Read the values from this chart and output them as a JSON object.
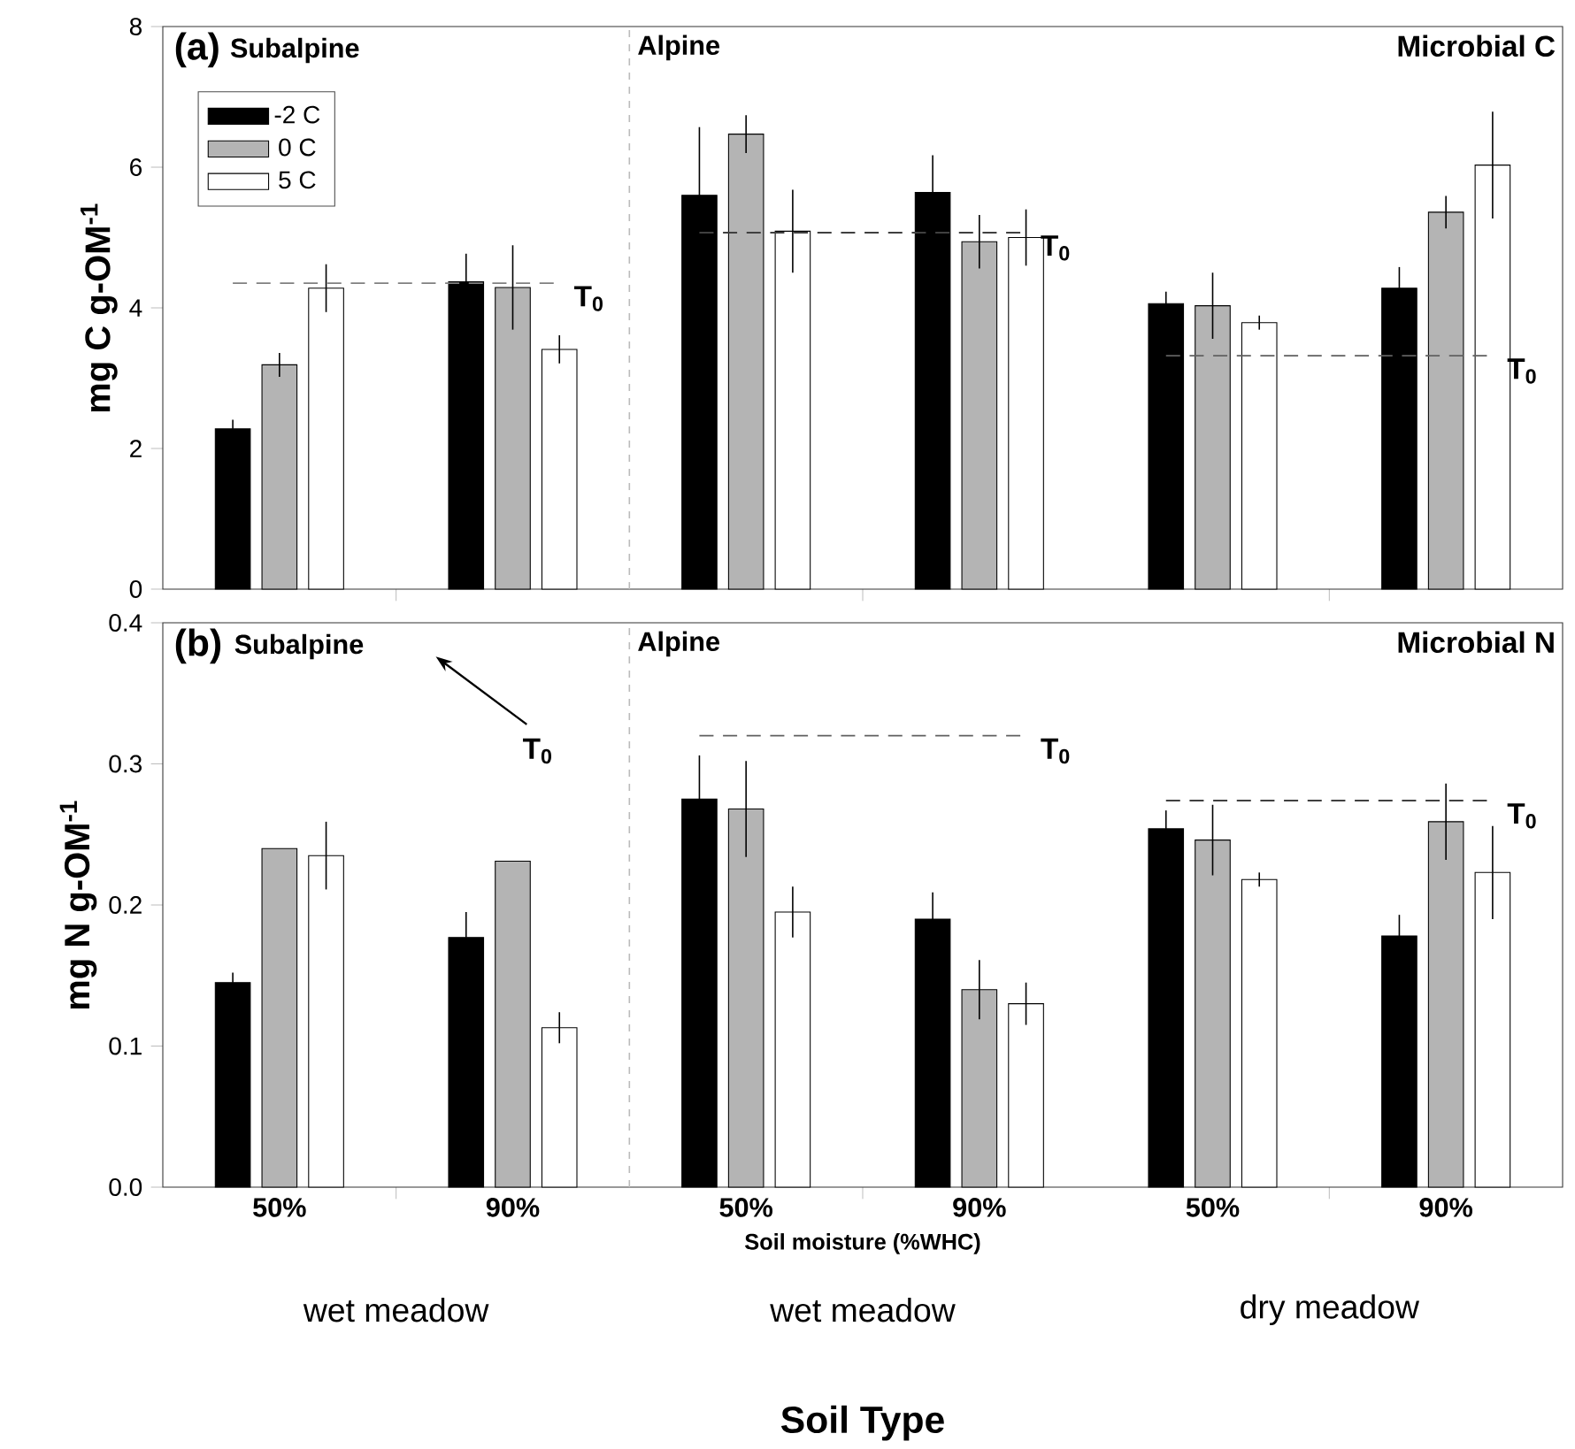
{
  "chart_data": [
    {
      "type": "bar",
      "ylabel": "mg C g-OM$^{-1}$",
      "categories": [
        null,
        null,
        null,
        null,
        null,
        null
      ],
      "tick_labels": "y",
      "ylim": [
        0,
        8
      ],
      "yticks": [
        0,
        2,
        4,
        6,
        8
      ],
      "legend": "top left",
      "series": [
        {
          "name": "-2 C",
          "color": "#000000",
          "values": [
            2.28,
            4.37,
            5.6,
            5.64,
            4.06,
            4.28
          ],
          "errors": [
            0.13,
            0.4,
            0.97,
            0.53,
            0.17,
            0.3
          ]
        },
        {
          "name": "0 C",
          "color": "#b4b4b4",
          "values": [
            3.19,
            4.29,
            6.47,
            4.94,
            4.03,
            5.36
          ],
          "errors": [
            0.17,
            0.6,
            0.27,
            0.38,
            0.47,
            0.23
          ]
        },
        {
          "name": "5 C",
          "color": "#ffffff",
          "values": [
            4.28,
            3.41,
            5.09,
            5.0,
            3.79,
            6.03
          ],
          "errors": [
            0.34,
            0.2,
            0.59,
            0.4,
            0.1,
            0.76
          ]
        }
      ],
      "ref_lines": [
        {
          "axis": "y",
          "value": 4.35,
          "label": "T$_{0}$",
          "color": "#808080",
          "line_style": "dashed"
        },
        {
          "axis": "y",
          "value": 5.07,
          "label": "T$_{0}$",
          "color": "#404040",
          "line_style": "dashed"
        },
        {
          "axis": "y",
          "value": 3.32,
          "label": "T$_{0}$",
          "color": "#606060",
          "line_style": "dashed"
        }
      ],
      "annotations": [
        "(a)",
        "Subalpine",
        "Alpine",
        "Microbial C"
      ]
    },
    {
      "type": "bar",
      "ylabel": "mg N g-OM$^{-1}$",
      "xlabel": "Soil moisture (%WHC)",
      "categories": [
        "50%",
        "90%",
        "50%",
        "90%",
        "50%",
        "90%"
      ],
      "ylim": [
        0,
        0.4
      ],
      "yticks": [
        {
          "value": 0,
          "label": "0.0"
        },
        {
          "value": 0.1,
          "label": "0.1"
        },
        {
          "value": 0.2,
          "label": "0.2"
        },
        {
          "value": 0.3,
          "label": "0.3"
        },
        {
          "value": 0.4,
          "label": "0.4"
        }
      ],
      "series": [
        {
          "color": "#000000",
          "values": [
            0.145,
            0.177,
            0.275,
            0.19,
            0.254,
            0.178
          ],
          "errors": [
            0.007,
            0.018,
            0.031,
            0.019,
            0.013,
            0.015
          ]
        },
        {
          "color": "#b4b4b4",
          "values": [
            0.24,
            0.231,
            0.268,
            0.14,
            0.246,
            0.259
          ],
          "errors": [
            null,
            null,
            0.034,
            0.021,
            0.025,
            0.027
          ]
        },
        {
          "color": "#ffffff",
          "values": [
            0.235,
            0.113,
            0.195,
            0.13,
            0.218,
            0.223
          ],
          "errors": [
            0.024,
            0.011,
            0.018,
            0.015,
            0.005,
            0.033
          ]
        }
      ],
      "ref_lines": [
        {
          "axis": "y",
          "value": 0.32,
          "label": "T$_{0}$",
          "color": "#606060",
          "line_style": "dashed"
        },
        {
          "axis": "y",
          "value": 0.274,
          "label": "T$_{0}$",
          "color": "#404040",
          "line_style": "dashed"
        }
      ],
      "annotations": [
        "(b)",
        "Subalpine",
        "Alpine",
        "Microbial N",
        "T$_{0}$",
        "wet meadow",
        "wet meadow",
        "dry meadow",
        "Soil Type"
      ]
    }
  ]
}
